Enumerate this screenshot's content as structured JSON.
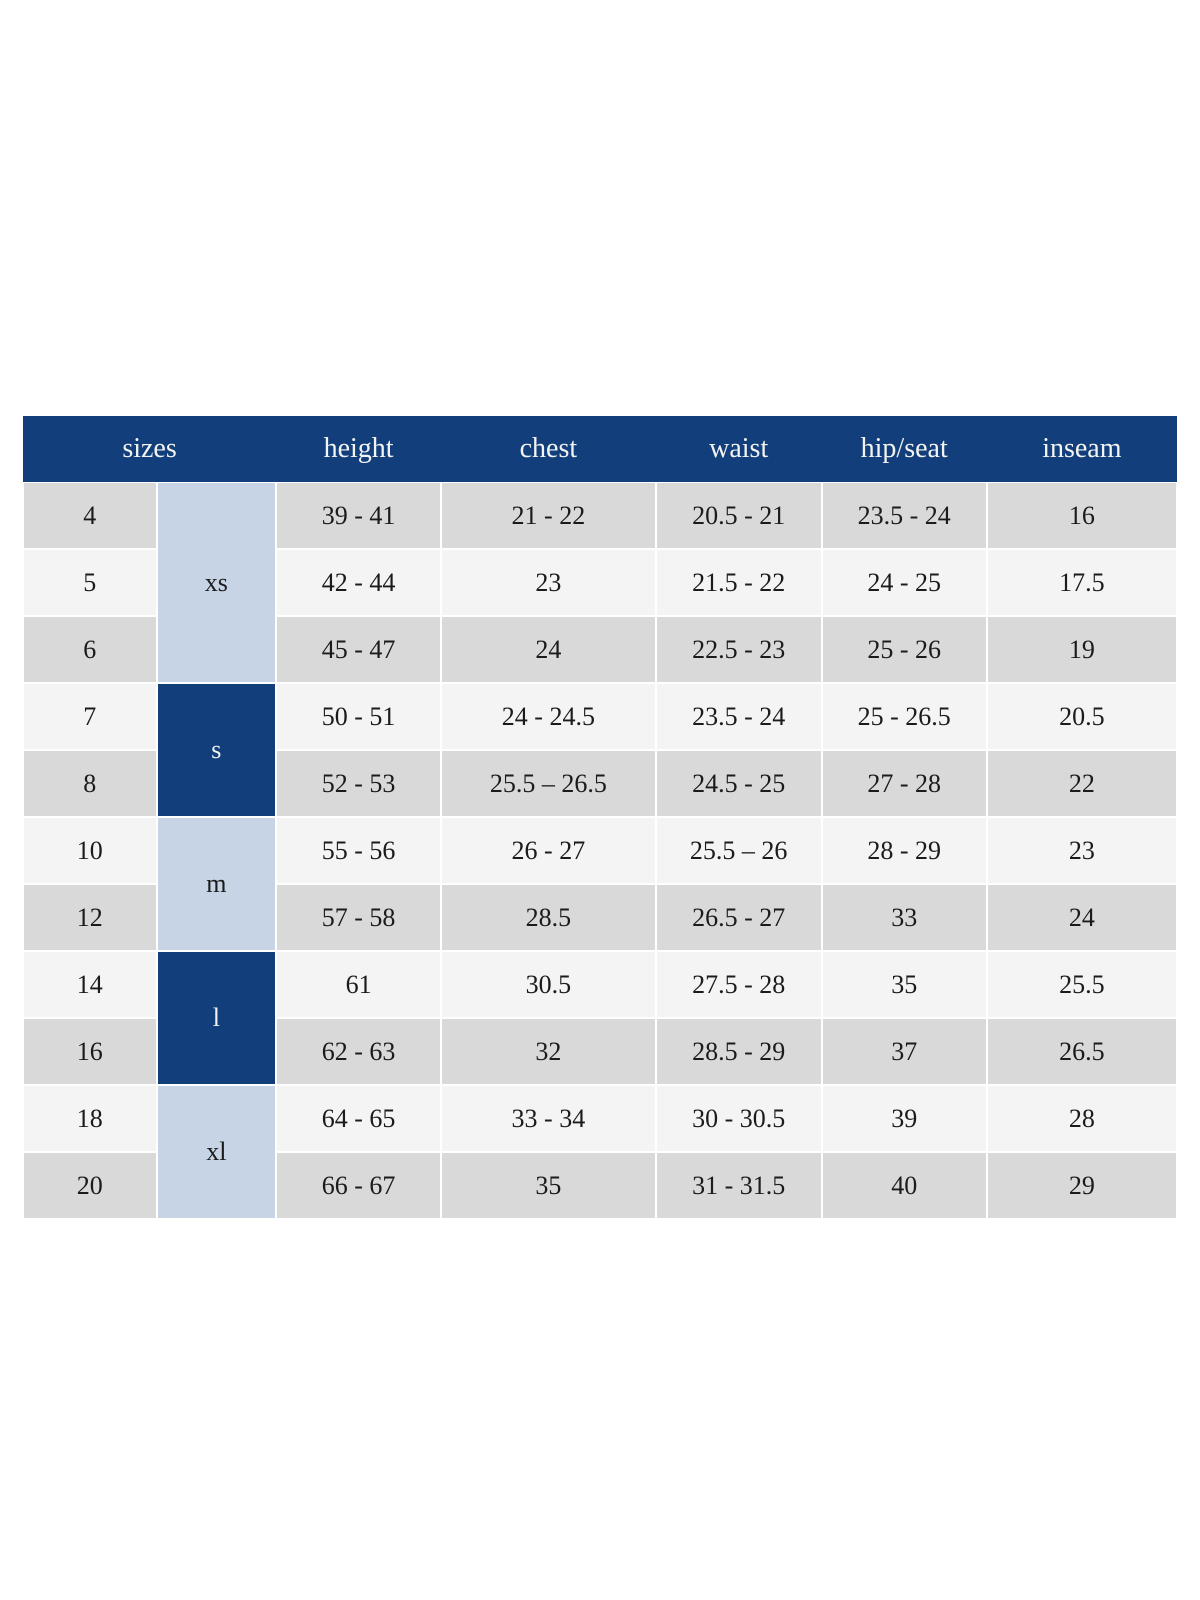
{
  "theme": {
    "navy": "#133e7c",
    "group_light": "#c7d4e5",
    "row_gray": "#d9d9d9",
    "row_light": "#f4f4f4",
    "ink": "#1b1b1b",
    "header_ink": "#f3f4f1",
    "page_bg": "#ffffff"
  },
  "chart_data": {
    "type": "table",
    "title": "",
    "columns": [
      "sizes",
      "height",
      "chest",
      "waist",
      "hip/seat",
      "inseam"
    ],
    "groups": [
      {
        "label": "xs",
        "row_span": 3
      },
      {
        "label": "s",
        "row_span": 2
      },
      {
        "label": "m",
        "row_span": 2
      },
      {
        "label": "l",
        "row_span": 2
      },
      {
        "label": "xl",
        "row_span": 2
      }
    ],
    "rows": [
      {
        "size": "4",
        "group": "xs",
        "height": "39 - 41",
        "chest": "21 - 22",
        "waist": "20.5 - 21",
        "hip": "23.5 - 24",
        "inseam": "16"
      },
      {
        "size": "5",
        "group": "xs",
        "height": "42 - 44",
        "chest": "23",
        "waist": "21.5 - 22",
        "hip": "24 - 25",
        "inseam": "17.5"
      },
      {
        "size": "6",
        "group": "xs",
        "height": "45 - 47",
        "chest": "24",
        "waist": "22.5 - 23",
        "hip": "25 - 26",
        "inseam": "19"
      },
      {
        "size": "7",
        "group": "s",
        "height": "50 - 51",
        "chest": "24 - 24.5",
        "waist": "23.5 - 24",
        "hip": "25 - 26.5",
        "inseam": "20.5"
      },
      {
        "size": "8",
        "group": "s",
        "height": "52 - 53",
        "chest": "25.5 – 26.5",
        "waist": "24.5 - 25",
        "hip": "27 - 28",
        "inseam": "22"
      },
      {
        "size": "10",
        "group": "m",
        "height": "55 - 56",
        "chest": "26 - 27",
        "waist": "25.5 – 26",
        "hip": "28 - 29",
        "inseam": "23"
      },
      {
        "size": "12",
        "group": "m",
        "height": "57 - 58",
        "chest": "28.5",
        "waist": "26.5 - 27",
        "hip": "33",
        "inseam": "24"
      },
      {
        "size": "14",
        "group": "l",
        "height": "61",
        "chest": "30.5",
        "waist": "27.5 - 28",
        "hip": "35",
        "inseam": "25.5"
      },
      {
        "size": "16",
        "group": "l",
        "height": "62 - 63",
        "chest": "32",
        "waist": "28.5 - 29",
        "hip": "37",
        "inseam": "26.5"
      },
      {
        "size": "18",
        "group": "xl",
        "height": "64 - 65",
        "chest": "33 - 34",
        "waist": "30 - 30.5",
        "hip": "39",
        "inseam": "28"
      },
      {
        "size": "20",
        "group": "xl",
        "height": "66 - 67",
        "chest": "35",
        "waist": "31 - 31.5",
        "hip": "40",
        "inseam": "29"
      }
    ]
  }
}
